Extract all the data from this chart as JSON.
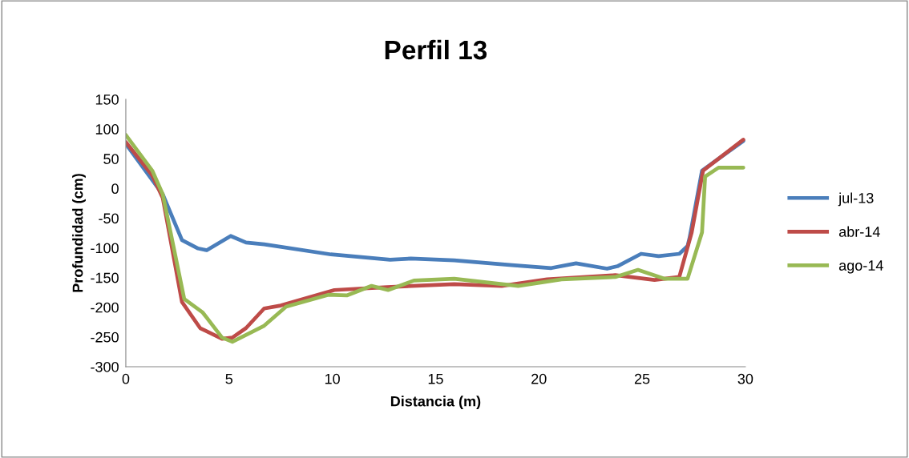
{
  "chart_data": {
    "type": "line",
    "title": "Perfil 13",
    "xlabel": "Distancia (m)",
    "ylabel": "Profundidad (cm)",
    "xlim": [
      0,
      30
    ],
    "xticks": [
      0,
      5,
      10,
      15,
      20,
      25,
      30
    ],
    "ylim": [
      -300,
      150
    ],
    "yticks": [
      -300,
      -250,
      -200,
      -150,
      -100,
      -50,
      0,
      50,
      100,
      150
    ],
    "grid": false,
    "legend": "right",
    "marker": "none",
    "line_style": "solid",
    "series": [
      {
        "name": "jul-13",
        "color": "#4a7ebb",
        "x": [
          0,
          1.79,
          2.72,
          3.5,
          3.92,
          5.08,
          5.82,
          6.7,
          9.93,
          12.8,
          13.8,
          15.9,
          18.7,
          20.6,
          21.8,
          23.3,
          23.8,
          24.95,
          25.8,
          26.8,
          27.2,
          27.3,
          27.9,
          29.9
        ],
        "values": [
          75,
          -10,
          -87,
          -101,
          -104,
          -80,
          -91,
          -94,
          -111,
          -120,
          -118,
          -121,
          -129,
          -134,
          -126,
          -135,
          -131,
          -110,
          -114,
          -110,
          -97,
          -83,
          30,
          80
        ]
      },
      {
        "name": "abr-14",
        "color": "#be4b48",
        "x": [
          0,
          1.28,
          1.79,
          2.72,
          3.6,
          4.66,
          5.16,
          5.82,
          6.7,
          7.5,
          10.1,
          12.65,
          15.9,
          18.2,
          20.4,
          23.7,
          25.6,
          26.8,
          27.4,
          27.95,
          29.9
        ],
        "values": [
          78,
          22,
          -16,
          -191,
          -235,
          -253,
          -251,
          -235,
          -202,
          -197,
          -171,
          -166,
          -161,
          -164,
          -153,
          -146,
          -154,
          -149,
          -74,
          30,
          82
        ]
      },
      {
        "name": "ago-14",
        "color": "#98b954",
        "x": [
          0,
          1.28,
          1.79,
          2.83,
          3.73,
          4.66,
          5.16,
          6.7,
          7.76,
          9.8,
          10.7,
          11.9,
          12.7,
          13.95,
          15.9,
          19,
          21.1,
          23.7,
          24.8,
          26.1,
          27.2,
          27.9,
          28.05,
          28.7,
          29.9
        ],
        "values": [
          90,
          30,
          -10,
          -186,
          -209,
          -251,
          -258,
          -231,
          -199,
          -179,
          -180,
          -164,
          -171,
          -155,
          -152,
          -164,
          -153,
          -149,
          -137,
          -152,
          -152,
          -74,
          20,
          35,
          35
        ]
      }
    ]
  }
}
